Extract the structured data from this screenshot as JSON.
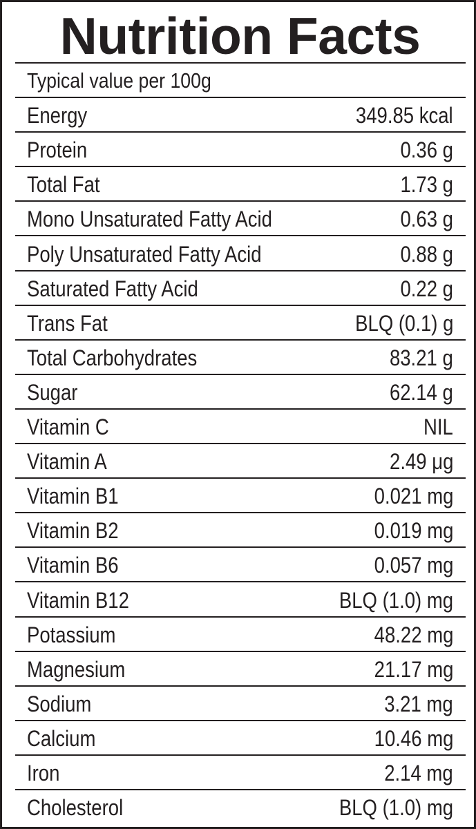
{
  "title": "Nutrition Facts",
  "subheader": "Typical value per 100g",
  "nutrients": [
    {
      "name": "Energy",
      "value": "349.85 kcal"
    },
    {
      "name": "Protein",
      "value": "0.36 g"
    },
    {
      "name": "Total Fat",
      "value": "1.73 g"
    },
    {
      "name": "Mono Unsaturated Fatty Acid",
      "value": "0.63 g"
    },
    {
      "name": "Poly Unsaturated Fatty Acid",
      "value": "0.88 g"
    },
    {
      "name": "Saturated Fatty Acid",
      "value": "0.22 g"
    },
    {
      "name": "Trans Fat",
      "value": "BLQ (0.1) g"
    },
    {
      "name": "Total Carbohydrates",
      "value": "83.21 g"
    },
    {
      "name": "Sugar",
      "value": "62.14 g"
    },
    {
      "name": "Vitamin C",
      "value": "NIL"
    },
    {
      "name": "Vitamin A",
      "value": "2.49 μg"
    },
    {
      "name": "Vitamin B1",
      "value": "0.021 mg"
    },
    {
      "name": "Vitamin B2",
      "value": "0.019 mg"
    },
    {
      "name": "Vitamin B6",
      "value": "0.057 mg"
    },
    {
      "name": "Vitamin B12",
      "value": "BLQ (1.0) mg"
    },
    {
      "name": "Potassium",
      "value": "48.22 mg"
    },
    {
      "name": "Magnesium",
      "value": "21.17 mg"
    },
    {
      "name": "Sodium",
      "value": "3.21 mg"
    },
    {
      "name": "Calcium",
      "value": "10.46 mg"
    },
    {
      "name": "Iron",
      "value": "2.14 mg"
    },
    {
      "name": "Cholesterol",
      "value": "BLQ (1.0) mg"
    }
  ]
}
